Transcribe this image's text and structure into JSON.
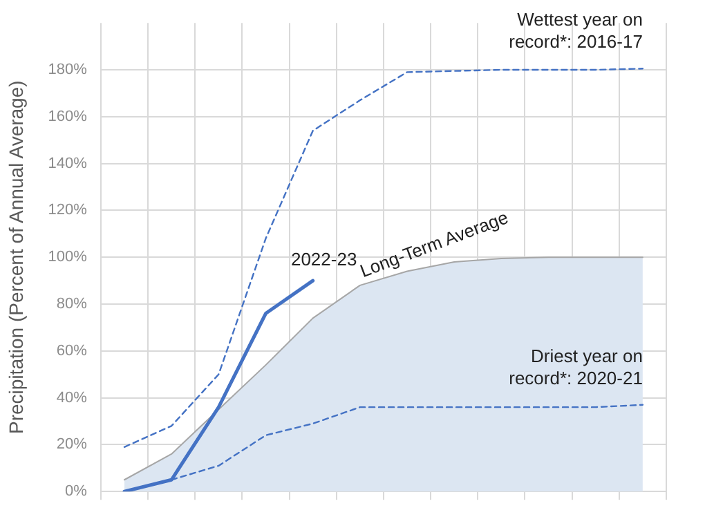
{
  "chart_data": {
    "type": "line",
    "ylabel": "Precipitation (Percent of Annual Average)",
    "categories": [
      null,
      null,
      null,
      null,
      null,
      null,
      null,
      null,
      null,
      null,
      null,
      null
    ],
    "ylim": [
      0,
      200
    ],
    "yticks": [
      {
        "value": 0,
        "label": "0%"
      },
      {
        "value": 20,
        "label": "20%"
      },
      {
        "value": 40,
        "label": "40%"
      },
      {
        "value": 60,
        "label": "60%"
      },
      {
        "value": 80,
        "label": "80%"
      },
      {
        "value": 100,
        "label": "100%"
      },
      {
        "value": 120,
        "label": "120%"
      },
      {
        "value": 140,
        "label": "140%"
      },
      {
        "value": 160,
        "label": "160%"
      },
      {
        "value": 180,
        "label": "180%"
      }
    ],
    "grid": true,
    "legend": false,
    "marker": "none",
    "series": [
      {
        "name": "Long-Term Average",
        "type": "area",
        "color": "#dce6f2",
        "values": [
          5,
          16,
          35,
          54,
          74,
          88,
          94,
          98,
          99.5,
          100,
          100,
          100
        ]
      },
      {
        "name": "Wettest year on record*: 2016-17",
        "color": "#4472c4",
        "line_style": "dashed",
        "values": [
          19,
          28,
          50,
          108,
          154,
          167,
          179,
          179.5,
          180,
          180,
          180,
          180.5
        ]
      },
      {
        "name": "Driest year on record*: 2020-21",
        "color": "#4472c4",
        "line_style": "dashed",
        "values": [
          null,
          5,
          11,
          24,
          29,
          36,
          36,
          36,
          36,
          36,
          36,
          37
        ]
      },
      {
        "name": "2022-23",
        "color": "#4472c4",
        "line_style": "solid",
        "values": [
          0,
          5,
          36,
          76,
          90,
          null,
          null,
          null,
          null,
          null,
          null,
          null
        ]
      }
    ]
  }
}
